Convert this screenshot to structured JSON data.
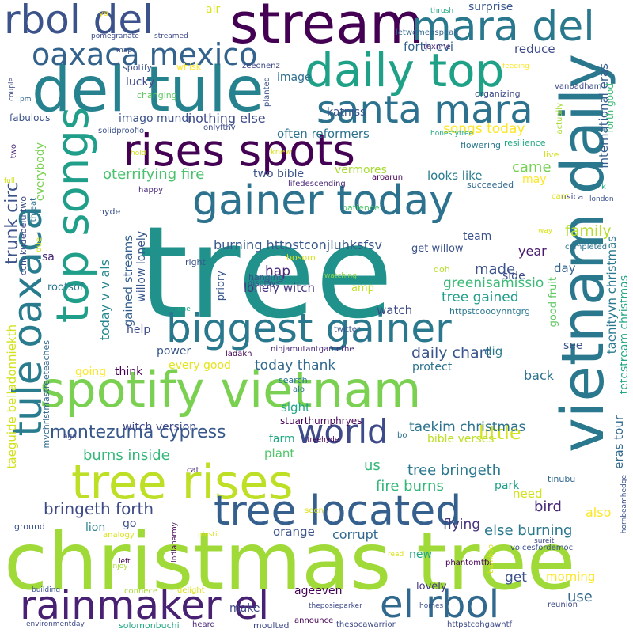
{
  "words": [
    {
      "text": "tree",
      "color": "#21918c"
    },
    {
      "text": "christmas tree",
      "color": "#a0da39"
    },
    {
      "text": "spotify vietnam",
      "color": "#7ad151"
    },
    {
      "text": "vietnam daily",
      "color": "#2a788e"
    },
    {
      "text": "del tule",
      "color": "#26828e"
    },
    {
      "text": "stream",
      "color": "#440154"
    },
    {
      "text": "rbol del",
      "color": "#3b528b"
    },
    {
      "text": "mara del",
      "color": "#2a788e"
    },
    {
      "text": "daily top",
      "color": "#1fa187"
    },
    {
      "text": "santa mara",
      "color": "#2c728e"
    },
    {
      "text": "rises spots",
      "color": "#440154"
    },
    {
      "text": "oaxaca mexico",
      "color": "#33638d"
    },
    {
      "text": "top songs",
      "color": "#1f9e89"
    },
    {
      "text": "tule oaxaca",
      "color": "#287c8e"
    },
    {
      "text": "gainer today",
      "color": "#2c728e"
    },
    {
      "text": "biggest gainer",
      "color": "#2a788e"
    },
    {
      "text": "tree rises",
      "color": "#bddf26"
    },
    {
      "text": "world",
      "color": "#3e4a89"
    },
    {
      "text": "tree located",
      "color": "#355f8d"
    },
    {
      "text": "rainmaker el",
      "color": "#482173"
    },
    {
      "text": "el rbol",
      "color": "#31688e"
    },
    {
      "text": "trunk circ",
      "color": "#3b528b"
    },
    {
      "text": "montezuma cypress",
      "color": "#38588c"
    },
    {
      "text": "bringeth forth",
      "color": "#3e4a89"
    },
    {
      "text": "daily chart",
      "color": "#39568c"
    },
    {
      "text": "little",
      "color": "#d2e21b"
    },
    {
      "text": "tree bringeth",
      "color": "#2a788e"
    },
    {
      "text": "burning httpstconjluhksfsv",
      "color": "#38588c"
    },
    {
      "text": "oterrifying fire",
      "color": "#4ac16d"
    },
    {
      "text": "made",
      "color": "#3b528b"
    },
    {
      "text": "family",
      "color": "#b5de2b"
    },
    {
      "text": "burns inside",
      "color": "#35b779"
    },
    {
      "text": "taekim christmas",
      "color": "#2c728e"
    },
    {
      "text": "fire burns",
      "color": "#35b779"
    },
    {
      "text": "else burning",
      "color": "#2a788e"
    },
    {
      "text": "today thank",
      "color": "#31688e"
    },
    {
      "text": "watch",
      "color": "#3e4a89"
    },
    {
      "text": "songs today",
      "color": "#fde725"
    },
    {
      "text": "tree gained",
      "color": "#1f9e89"
    },
    {
      "text": "greenisamissio",
      "color": "#3aba76"
    },
    {
      "text": "lonely witch",
      "color": "#453781"
    },
    {
      "text": "hap",
      "color": "#482878"
    },
    {
      "text": "gained streams",
      "color": "#355f8d"
    },
    {
      "text": "willow lonely",
      "color": "#38588c"
    },
    {
      "text": "nothing else",
      "color": "#3e4a89"
    },
    {
      "text": "imago mundi",
      "color": "#3b528b"
    },
    {
      "text": "often reformers",
      "color": "#2c728e"
    },
    {
      "text": "two bible",
      "color": "#3b528b"
    },
    {
      "text": "vermores",
      "color": "#a8db34"
    },
    {
      "text": "looks like",
      "color": "#287c8e"
    },
    {
      "text": "came",
      "color": "#75d054"
    },
    {
      "text": "katniss",
      "color": "#3b528b"
    },
    {
      "text": "lucky",
      "color": "#3e4a89"
    },
    {
      "text": "image",
      "color": "#2e6e8e"
    },
    {
      "text": "forth evi",
      "color": "#33638d"
    },
    {
      "text": "reduce",
      "color": "#3e4a89"
    },
    {
      "text": "surprise",
      "color": "#38588c"
    },
    {
      "text": "air",
      "color": "#dae319"
    },
    {
      "text": "everybody",
      "color": "#7ad151"
    },
    {
      "text": "today v v als",
      "color": "#24878e"
    },
    {
      "text": "international eras",
      "color": "#355f8d"
    },
    {
      "text": "taenityvn christmas",
      "color": "#2a788e"
    },
    {
      "text": "tetestream christmas",
      "color": "#22a884"
    },
    {
      "text": "taeguide belladonniekth",
      "color": "#d2e21b"
    },
    {
      "text": "mvchristmastreeteaches",
      "color": "#31688e"
    },
    {
      "text": "cchukudebelu two",
      "color": "#3e4a89"
    },
    {
      "text": "year",
      "color": "#481a6c"
    },
    {
      "text": "day",
      "color": "#33638d"
    },
    {
      "text": "get willow",
      "color": "#3b528b"
    },
    {
      "text": "httpstcoooynntgrg",
      "color": "#2a788e"
    },
    {
      "text": "good fruit",
      "color": "#5ec962"
    },
    {
      "text": "forth good",
      "color": "#3aba76"
    },
    {
      "text": "eras tour",
      "color": "#31688e"
    },
    {
      "text": "also",
      "color": "#fde725"
    },
    {
      "text": "bird",
      "color": "#482878"
    },
    {
      "text": "need",
      "color": "#d2e21b"
    },
    {
      "text": "park",
      "color": "#1f9e89"
    },
    {
      "text": "flying",
      "color": "#46337e"
    },
    {
      "text": "corrupt",
      "color": "#31688e"
    },
    {
      "text": "orange",
      "color": "#3b528b"
    },
    {
      "text": "lion",
      "color": "#26828e"
    },
    {
      "text": "go",
      "color": "#3b528b"
    },
    {
      "text": "us",
      "color": "#35b779"
    },
    {
      "text": "plant",
      "color": "#52c569"
    },
    {
      "text": "farm",
      "color": "#22a884"
    },
    {
      "text": "sight",
      "color": "#20a386"
    },
    {
      "text": "witch version",
      "color": "#3e4a89"
    },
    {
      "text": "every good",
      "color": "#e5e419"
    },
    {
      "text": "power",
      "color": "#39568c"
    },
    {
      "text": "think",
      "color": "#440154"
    },
    {
      "text": "help",
      "color": "#3e4a89"
    },
    {
      "text": "going",
      "color": "#fde725"
    },
    {
      "text": "dig",
      "color": "#2a788e"
    },
    {
      "text": "protect",
      "color": "#2c728e"
    },
    {
      "text": "back",
      "color": "#2c728e"
    },
    {
      "text": "morning",
      "color": "#fde725"
    },
    {
      "text": "use",
      "color": "#31688e"
    },
    {
      "text": "get",
      "color": "#3b528b"
    },
    {
      "text": "new",
      "color": "#22a884"
    },
    {
      "text": "make",
      "color": "#3e4a89"
    },
    {
      "text": "ageeven",
      "color": "#440154"
    },
    {
      "text": "lovely",
      "color": "#453781"
    },
    {
      "text": "bible verses",
      "color": "#bddf26"
    },
    {
      "text": "stuarthumphryes",
      "color": "#440154"
    },
    {
      "text": "amp",
      "color": "#c2df23"
    },
    {
      "text": "team",
      "color": "#3b528b"
    },
    {
      "text": "side",
      "color": "#3e4a89"
    },
    {
      "text": "see",
      "color": "#39568c"
    },
    {
      "text": "may",
      "color": "#fde725"
    },
    {
      "text": "sa",
      "color": "#482878"
    },
    {
      "text": "rootsof",
      "color": "#2a788e"
    },
    {
      "text": "priory",
      "color": "#38588c"
    },
    {
      "text": "hanging",
      "color": "#3b528b"
    },
    {
      "text": "bosom",
      "color": "#dae319"
    },
    {
      "text": "doh",
      "color": "#b5de2b"
    },
    {
      "text": "watching",
      "color": "#86d549"
    },
    {
      "text": "displays",
      "color": "#3e4a89"
    },
    {
      "text": "right",
      "color": "#3b528b"
    },
    {
      "text": "ninjamutantgamethe",
      "color": "#482878"
    },
    {
      "text": "ladakh",
      "color": "#440154"
    },
    {
      "text": "twitter",
      "color": "#3b528b"
    },
    {
      "text": "search",
      "color": "#2a788e"
    },
    {
      "text": "alo",
      "color": "#2c728e"
    },
    {
      "text": "patience",
      "color": "#52c569"
    },
    {
      "text": "msica",
      "color": "#3e4a89"
    },
    {
      "text": "completed",
      "color": "#2c728e"
    },
    {
      "text": "aroarun",
      "color": "#440154"
    },
    {
      "text": "succeeded",
      "color": "#31688e"
    },
    {
      "text": "lifedescending",
      "color": "#482878"
    },
    {
      "text": "resilience",
      "color": "#22a884"
    },
    {
      "text": "flowering",
      "color": "#2a788e"
    },
    {
      "text": "honestytree",
      "color": "#22a884"
    },
    {
      "text": "live",
      "color": "#d2e21b"
    },
    {
      "text": "cant",
      "color": "#dae319"
    },
    {
      "text": "london",
      "color": "#3b528b"
    },
    {
      "text": "k",
      "color": "#22a884"
    },
    {
      "text": "way",
      "color": "#dae319"
    },
    {
      "text": "solidproofio",
      "color": "#3b528b"
    },
    {
      "text": "onlyfthv",
      "color": "#3e4a89"
    },
    {
      "text": "two",
      "color": "#482878"
    },
    {
      "text": "fabulous",
      "color": "#3b528b"
    },
    {
      "text": "pm",
      "color": "#31688e"
    },
    {
      "text": "couple",
      "color": "#3e4a89"
    },
    {
      "text": "mapi",
      "color": "#3b528b"
    },
    {
      "text": "spotify",
      "color": "#3b528b"
    },
    {
      "text": "whisk",
      "color": "#fde725"
    },
    {
      "text": "zeeonenz",
      "color": "#3e4a89"
    },
    {
      "text": "changing",
      "color": "#5ec962"
    },
    {
      "text": "planted",
      "color": "#3b528b"
    },
    {
      "text": "actually",
      "color": "#a8db34"
    },
    {
      "text": "organizing",
      "color": "#3e4a89"
    },
    {
      "text": "vanbadham",
      "color": "#3e4a89"
    },
    {
      "text": "letwomenspeak",
      "color": "#31688e"
    },
    {
      "text": "texnne",
      "color": "#482878"
    },
    {
      "text": "feeding",
      "color": "#fde725"
    },
    {
      "text": "thrush",
      "color": "#22a884"
    },
    {
      "text": "ya",
      "color": "#fde725"
    },
    {
      "text": "pomegranate",
      "color": "#3e4a89"
    },
    {
      "text": "streamed",
      "color": "#3e4a89"
    },
    {
      "text": "knew",
      "color": "#dae319"
    },
    {
      "text": "happy",
      "color": "#482878"
    },
    {
      "text": "hyde",
      "color": "#3b528b"
    },
    {
      "text": "threat",
      "color": "#2c728e"
    },
    {
      "text": "due",
      "color": "#d2e21b"
    },
    {
      "text": "full",
      "color": "#d2e21b"
    },
    {
      "text": "hold",
      "color": "#d2e21b"
    },
    {
      "text": "one",
      "color": "#22a884"
    },
    {
      "text": "treehyde",
      "color": "#440154"
    },
    {
      "text": "bo",
      "color": "#2c728e"
    },
    {
      "text": "tinubu",
      "color": "#31688e"
    },
    {
      "text": "cat",
      "color": "#482878"
    },
    {
      "text": "seen",
      "color": "#dae319"
    },
    {
      "text": "sureit",
      "color": "#3e4a89"
    },
    {
      "text": "voicesfordemoc",
      "color": "#3b528b"
    },
    {
      "text": "ground",
      "color": "#3b528b"
    },
    {
      "text": "analogy",
      "color": "#dae319"
    },
    {
      "text": "plastic",
      "color": "#dae319"
    },
    {
      "text": "indianarmy",
      "color": "#440154"
    },
    {
      "text": "read",
      "color": "#dae319"
    },
    {
      "text": "phantomtfx",
      "color": "#440154"
    },
    {
      "text": "bamboo",
      "color": "#dae319"
    },
    {
      "text": "enjoy",
      "color": "#a8db34"
    },
    {
      "text": "left",
      "color": "#440154"
    },
    {
      "text": "building",
      "color": "#3b528b"
    },
    {
      "text": "conhece",
      "color": "#a8db34"
    },
    {
      "text": "delight",
      "color": "#dae319"
    },
    {
      "text": "theposieparker",
      "color": "#3e4a89"
    },
    {
      "text": "homes",
      "color": "#3b528b"
    },
    {
      "text": "reunion",
      "color": "#3e4a89"
    },
    {
      "text": "hornbeamhedge",
      "color": "#3b528b"
    },
    {
      "text": "environmentday",
      "color": "#3e4a89"
    },
    {
      "text": "solomonbuchi",
      "color": "#22a884"
    },
    {
      "text": "heard",
      "color": "#482878"
    },
    {
      "text": "moulted",
      "color": "#3e4a89"
    },
    {
      "text": "announce",
      "color": "#440154"
    },
    {
      "text": "thesocawarrior",
      "color": "#3e4a89"
    },
    {
      "text": "httpstcohgawntf",
      "color": "#3e4a89"
    },
    {
      "text": "ago",
      "color": "#3e4a89"
    }
  ]
}
